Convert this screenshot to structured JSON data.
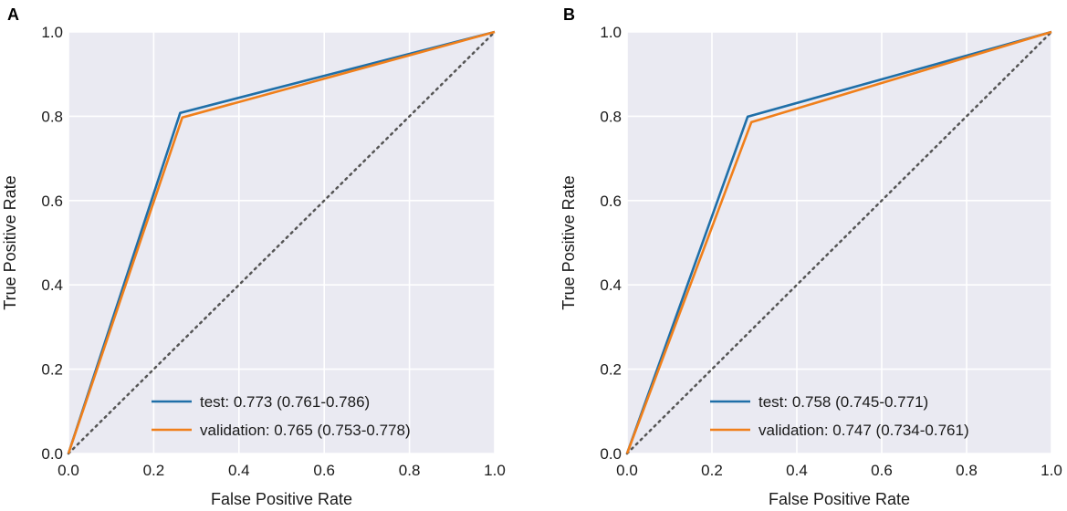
{
  "chart_data": [
    {
      "type": "line",
      "panel_label": "A",
      "xlabel": "False Positive Rate",
      "ylabel": "True Positive Rate",
      "xlim": [
        0,
        1
      ],
      "ylim": [
        0,
        1
      ],
      "xticks": [
        "0.0",
        "0.2",
        "0.4",
        "0.6",
        "0.8",
        "1.0"
      ],
      "yticks": [
        "0.0",
        "0.2",
        "0.4",
        "0.6",
        "0.8",
        "1.0"
      ],
      "grid": true,
      "legend_position": "lower-right",
      "series": [
        {
          "name": "test: 0.773 (0.761-0.786)",
          "color": "#1f6fa8",
          "x": [
            0,
            0.262,
            1
          ],
          "y": [
            0,
            0.808,
            1
          ]
        },
        {
          "name": "validation: 0.765 (0.753-0.778)",
          "color": "#f07f1a",
          "x": [
            0,
            0.267,
            1
          ],
          "y": [
            0,
            0.797,
            1
          ]
        }
      ],
      "reference_line": {
        "x": [
          0,
          1
        ],
        "y": [
          0,
          1
        ],
        "color": "#555555",
        "style": "dotted"
      }
    },
    {
      "type": "line",
      "panel_label": "B",
      "xlabel": "False Positive Rate",
      "ylabel": "True Positive Rate",
      "xlim": [
        0,
        1
      ],
      "ylim": [
        0,
        1
      ],
      "xticks": [
        "0.0",
        "0.2",
        "0.4",
        "0.6",
        "0.8",
        "1.0"
      ],
      "yticks": [
        "0.0",
        "0.2",
        "0.4",
        "0.6",
        "0.8",
        "1.0"
      ],
      "grid": true,
      "legend_position": "lower-right",
      "series": [
        {
          "name": "test: 0.758 (0.745-0.771)",
          "color": "#1f6fa8",
          "x": [
            0,
            0.284,
            1
          ],
          "y": [
            0,
            0.799,
            1
          ]
        },
        {
          "name": "validation: 0.747 (0.734-0.761)",
          "color": "#f07f1a",
          "x": [
            0,
            0.293,
            1
          ],
          "y": [
            0,
            0.786,
            1
          ]
        }
      ],
      "reference_line": {
        "x": [
          0,
          1
        ],
        "y": [
          0,
          1
        ],
        "color": "#555555",
        "style": "dotted"
      }
    }
  ]
}
